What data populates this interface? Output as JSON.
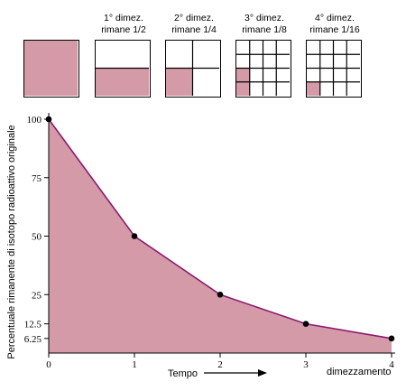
{
  "halvings": [
    {
      "label": "",
      "num": 1,
      "den": 1
    },
    {
      "label": "1° dimez.\nrimane 1/2",
      "num": 1,
      "den": 2
    },
    {
      "label": "2° dimez.\nrimane 1/4",
      "num": 1,
      "den": 4
    },
    {
      "label": "3° dimez.\nrimane 1/8",
      "num": 1,
      "den": 8
    },
    {
      "label": "4° dimez.\nrimane 1/16",
      "num": 1,
      "den": 16
    }
  ],
  "colors": {
    "fill": "#d49aa7",
    "line": "#8b1a6f",
    "point": "#000000"
  },
  "chart_data": {
    "type": "area",
    "x": [
      0,
      1,
      2,
      3,
      4
    ],
    "y": [
      100,
      50,
      25,
      12.5,
      6.25
    ],
    "x_ticks": [
      "0",
      "1",
      "2",
      "3",
      "4"
    ],
    "y_ticks": [
      "100",
      "75",
      "50",
      "25",
      "12.5",
      "6.25"
    ],
    "y_tick_values": [
      100,
      75,
      50,
      25,
      12.5,
      6.25
    ],
    "xlabel": "Tempo",
    "xlabel_right": "dimezzamento",
    "ylabel": "Percentuale rimanente di isotopo radioattivo originale",
    "xlim": [
      0,
      4
    ],
    "ylim": [
      0,
      100
    ],
    "grid": false
  }
}
